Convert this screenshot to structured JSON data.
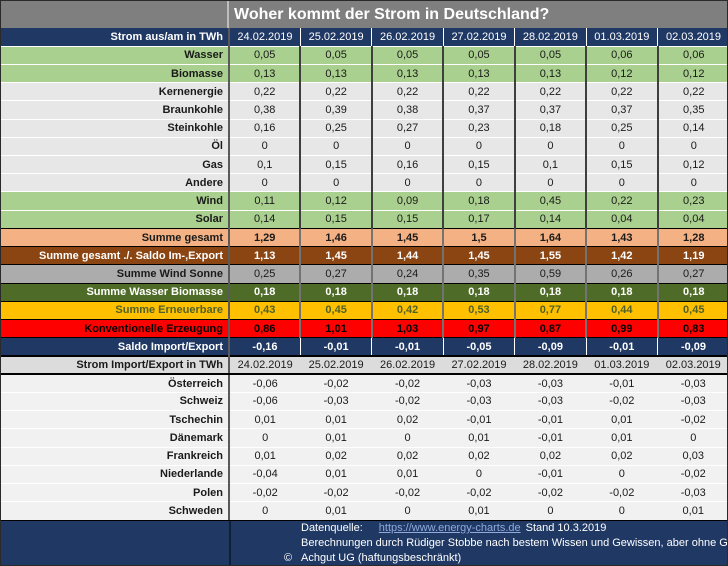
{
  "page_title": "Woher kommt der Strom in Deutschland?",
  "colors": {
    "title_bar": "#7F7F7F",
    "header_navy": "#1F3864",
    "renewable_green": "#A9D08E",
    "conventional_gray": "#E8E7E7",
    "sum_total_peach": "#F4B183",
    "sum_net_brown": "#8B4513",
    "sum_wind_sun_gray": "#ACACAC",
    "sum_water_biomass_green": "#4F6B28",
    "renewables_gold": "#FFC000",
    "conventional_red": "#FF0000",
    "saldo_navy": "#1F3864",
    "import_header_gray": "#DCDCDC",
    "country_row_bg": "#F1F1F1",
    "footer_navy": "#1F3864",
    "link_blue": "#8FAADC"
  },
  "chart_data": [
    {
      "type": "table",
      "title": "Woher kommt der Strom in Deutschland?",
      "header_label": "Strom aus/am in TWh",
      "unit": "TWh",
      "columns": [
        "24.02.2019",
        "25.02.2019",
        "26.02.2019",
        "27.02.2019",
        "28.02.2019",
        "01.03.2019",
        "02.03.2019"
      ],
      "rows": [
        {
          "name": "Wasser",
          "style": "green",
          "values": [
            0.05,
            0.05,
            0.05,
            0.05,
            0.05,
            0.06,
            0.06
          ]
        },
        {
          "name": "Biomasse",
          "style": "green",
          "values": [
            0.13,
            0.13,
            0.13,
            0.13,
            0.13,
            0.12,
            0.12
          ]
        },
        {
          "name": "Kernenergie",
          "style": "light",
          "values": [
            0.22,
            0.22,
            0.22,
            0.22,
            0.22,
            0.22,
            0.22
          ]
        },
        {
          "name": "Braunkohle",
          "style": "light",
          "values": [
            0.38,
            0.39,
            0.38,
            0.37,
            0.37,
            0.37,
            0.35
          ]
        },
        {
          "name": "Steinkohle",
          "style": "light",
          "values": [
            0.16,
            0.25,
            0.27,
            0.23,
            0.18,
            0.25,
            0.14
          ]
        },
        {
          "name": "Öl",
          "style": "light",
          "values": [
            0,
            0,
            0,
            0,
            0,
            0,
            0
          ]
        },
        {
          "name": "Gas",
          "style": "light",
          "values": [
            0.1,
            0.15,
            0.16,
            0.15,
            0.1,
            0.15,
            0.12
          ]
        },
        {
          "name": "Andere",
          "style": "light",
          "values": [
            0,
            0,
            0,
            0,
            0,
            0,
            0
          ]
        },
        {
          "name": "Wind",
          "style": "green",
          "values": [
            0.11,
            0.12,
            0.09,
            0.18,
            0.45,
            0.22,
            0.23
          ]
        },
        {
          "name": "Solar",
          "style": "green",
          "values": [
            0.14,
            0.15,
            0.15,
            0.17,
            0.14,
            0.04,
            0.04
          ]
        },
        {
          "name": "Summe gesamt",
          "style": "peach",
          "values": [
            1.29,
            1.46,
            1.45,
            1.5,
            1.64,
            1.43,
            1.28
          ]
        },
        {
          "name": "Summe gesamt ./. Saldo Im-,Export",
          "style": "brown",
          "values": [
            1.13,
            1.45,
            1.44,
            1.45,
            1.55,
            1.42,
            1.19
          ]
        },
        {
          "name": "Summe Wind Sonne",
          "style": "graysum",
          "values": [
            0.25,
            0.27,
            0.24,
            0.35,
            0.59,
            0.26,
            0.27
          ]
        },
        {
          "name": "Summe Wasser Biomasse",
          "style": "dkgreen",
          "values": [
            0.18,
            0.18,
            0.18,
            0.18,
            0.18,
            0.18,
            0.18
          ]
        },
        {
          "name": "Summe Erneuerbare",
          "style": "gold",
          "values": [
            0.43,
            0.45,
            0.42,
            0.53,
            0.77,
            0.44,
            0.45
          ]
        },
        {
          "name": "Konventionelle Erzeugung",
          "style": "red",
          "values": [
            0.86,
            1.01,
            1.03,
            0.97,
            0.87,
            0.99,
            0.83
          ]
        },
        {
          "name": "Saldo Import/Export",
          "style": "navy",
          "values": [
            -0.16,
            -0.01,
            -0.01,
            -0.05,
            -0.09,
            -0.01,
            -0.09
          ]
        }
      ]
    },
    {
      "type": "table",
      "title": "Strom Import/Export in TWh",
      "header_label": "Strom Import/Export in TWh",
      "unit": "TWh",
      "columns": [
        "24.02.2019",
        "25.02.2019",
        "26.02.2019",
        "27.02.2019",
        "28.02.2019",
        "01.03.2019",
        "02.03.2019"
      ],
      "rows": [
        {
          "name": "Österreich",
          "style": "plain",
          "values": [
            -0.06,
            -0.02,
            -0.02,
            -0.03,
            -0.03,
            -0.01,
            -0.03
          ]
        },
        {
          "name": "Schweiz",
          "style": "plain",
          "values": [
            -0.06,
            -0.03,
            -0.02,
            -0.03,
            -0.03,
            -0.02,
            -0.03
          ]
        },
        {
          "name": "Tschechin",
          "style": "plain",
          "values": [
            0.01,
            0.01,
            0.02,
            -0.01,
            -0.01,
            0.01,
            -0.02
          ]
        },
        {
          "name": "Dänemark",
          "style": "plain",
          "values": [
            0,
            0.01,
            0,
            0.01,
            -0.01,
            0.01,
            0
          ]
        },
        {
          "name": "Frankreich",
          "style": "plain",
          "values": [
            0.01,
            0.02,
            0.02,
            0.02,
            0.02,
            0.02,
            0.03
          ]
        },
        {
          "name": "Niederlande",
          "style": "plain",
          "values": [
            -0.04,
            0.01,
            0.01,
            0,
            -0.01,
            0,
            -0.02
          ]
        },
        {
          "name": "Polen",
          "style": "plain",
          "values": [
            -0.02,
            -0.02,
            -0.02,
            -0.02,
            -0.02,
            -0.02,
            -0.03
          ]
        },
        {
          "name": "Schweden",
          "style": "plain",
          "values": [
            0,
            0.01,
            0,
            0.01,
            0,
            0,
            0.01
          ]
        }
      ]
    }
  ],
  "footer": {
    "source_label": "Datenquelle:",
    "source_link": "https://www.energy-charts.de",
    "source_suffix": "Stand 10.3.2019",
    "disclaimer": "Berechnungen durch Rüdiger Stobbe nach bestem Wissen und Gewissen, aber ohne Gewähr",
    "copyright_symbol": "©",
    "copyright_text": "Achgut UG (haftungsbeschränkt)"
  }
}
